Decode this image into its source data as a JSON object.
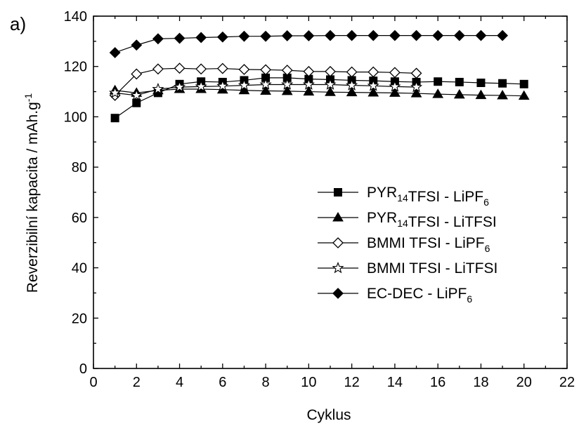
{
  "chart_data": {
    "type": "line",
    "panel_label": "a)",
    "xlabel": "Cyklus",
    "ylabel": {
      "main": "Reverzibilní kapacita / mAh.g",
      "sup": "-1"
    },
    "xlim": [
      0,
      22
    ],
    "ylim": [
      0,
      140
    ],
    "xticks": [
      "0",
      "2",
      "4",
      "6",
      "8",
      "10",
      "12",
      "14",
      "16",
      "18",
      "20",
      "22"
    ],
    "yticks": [
      "0",
      "20",
      "40",
      "60",
      "80",
      "100",
      "120",
      "140"
    ],
    "grid": false,
    "legend_position": "center-right",
    "series": [
      {
        "name": "PYR14TFSI - LiPF6",
        "label_parts": [
          {
            "t": "PYR"
          },
          {
            "t": "14",
            "sub": true
          },
          {
            "t": "TFSI - LiPF"
          },
          {
            "t": "6",
            "sub": true
          }
        ],
        "marker": "square-filled",
        "x": [
          1,
          2,
          3,
          4,
          5,
          6,
          7,
          8,
          9,
          10,
          11,
          12,
          13,
          14,
          15,
          16,
          17,
          18,
          19,
          20
        ],
        "y": [
          99.5,
          105.5,
          109.5,
          113,
          114,
          113.8,
          114.5,
          115.5,
          115.5,
          115,
          114.8,
          114.5,
          114.3,
          114,
          113.8,
          114,
          113.8,
          113.5,
          113.3,
          113
        ]
      },
      {
        "name": "PYR14TFSI - LiTFSI",
        "label_parts": [
          {
            "t": "PYR"
          },
          {
            "t": "14",
            "sub": true
          },
          {
            "t": "TFSI - LiTFSI"
          }
        ],
        "marker": "triangle-filled",
        "x": [
          1,
          2,
          3,
          4,
          5,
          6,
          7,
          8,
          9,
          10,
          11,
          12,
          13,
          14,
          15,
          16,
          17,
          18,
          19,
          20
        ],
        "y": [
          110.5,
          109.5,
          110.5,
          111,
          111,
          110.8,
          110.5,
          110.3,
          110.2,
          110,
          109.8,
          109.7,
          109.6,
          109.5,
          109.3,
          109,
          108.8,
          108.6,
          108.5,
          108.3
        ]
      },
      {
        "name": "BMMI TFSI - LiPF6",
        "label_parts": [
          {
            "t": "BMMI TFSI - LiPF"
          },
          {
            "t": "6",
            "sub": true
          }
        ],
        "marker": "diamond-open",
        "x": [
          1,
          2,
          3,
          4,
          5,
          6,
          7,
          8,
          9,
          10,
          11,
          12,
          13,
          14,
          15
        ],
        "y": [
          108.5,
          117,
          119,
          119.3,
          119,
          119.2,
          118.8,
          118.7,
          118.5,
          118,
          118,
          117.8,
          117.8,
          117.6,
          117.3
        ]
      },
      {
        "name": "BMMI TFSI - LiTFSI",
        "label_parts": [
          {
            "t": "BMMI TFSI - LiTFSI"
          }
        ],
        "marker": "star-open",
        "x": [
          1,
          2,
          3,
          4,
          5,
          6,
          7,
          8,
          9,
          10,
          11,
          12,
          13,
          14,
          15
        ],
        "y": [
          109.5,
          108.5,
          111,
          111.8,
          112,
          112.2,
          112.5,
          112.8,
          112.8,
          112.8,
          112.8,
          112.5,
          112.3,
          112,
          111.8
        ]
      },
      {
        "name": "EC-DEC - LiPF6",
        "label_parts": [
          {
            "t": "EC-DEC - LiPF"
          },
          {
            "t": "6",
            "sub": true
          }
        ],
        "marker": "diamond-filled",
        "x": [
          1,
          2,
          3,
          4,
          5,
          6,
          7,
          8,
          9,
          10,
          11,
          12,
          13,
          14,
          15,
          16,
          17,
          18,
          19
        ],
        "y": [
          125.5,
          128.5,
          131,
          131.2,
          131.5,
          131.7,
          132,
          132,
          132.2,
          132.2,
          132.3,
          132.3,
          132.3,
          132.3,
          132.3,
          132.3,
          132.3,
          132.3,
          132.3
        ]
      }
    ]
  }
}
